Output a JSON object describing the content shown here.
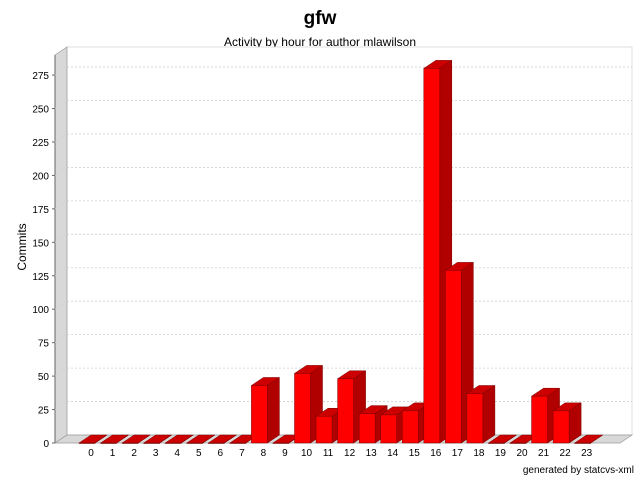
{
  "chart_data": {
    "type": "bar",
    "title": "gfw",
    "subtitle": "Activity by hour for author mlawilson",
    "xlabel": "",
    "ylabel": "Commits",
    "footer": "generated by statcvs-xml",
    "categories": [
      "0",
      "1",
      "2",
      "3",
      "4",
      "5",
      "6",
      "7",
      "8",
      "9",
      "10",
      "11",
      "12",
      "13",
      "14",
      "15",
      "16",
      "17",
      "18",
      "19",
      "20",
      "21",
      "22",
      "23"
    ],
    "values": [
      0,
      0,
      0,
      0,
      0,
      0,
      0,
      0,
      43,
      0,
      52,
      20,
      48,
      22,
      21,
      24,
      280,
      129,
      37,
      0,
      0,
      35,
      24,
      0
    ],
    "ylim": [
      0,
      290
    ],
    "yticks": [
      0,
      25,
      50,
      75,
      100,
      125,
      150,
      175,
      200,
      225,
      250,
      275
    ],
    "grid": true,
    "colors": {
      "bar_front": "#ff0000",
      "bar_side": "#b00000",
      "bar_top": "#cc0000",
      "wall": "#d8d8d8"
    }
  }
}
